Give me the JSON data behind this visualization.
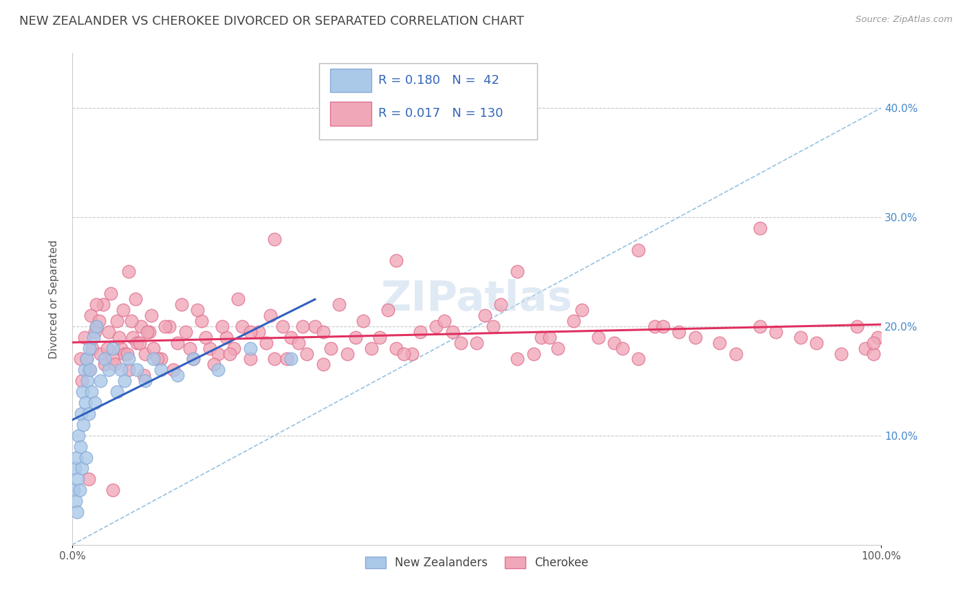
{
  "title": "NEW ZEALANDER VS CHEROKEE DIVORCED OR SEPARATED CORRELATION CHART",
  "source": "Source: ZipAtlas.com",
  "ylabel": "Divorced or Separated",
  "xlim": [
    0,
    100
  ],
  "ylim": [
    0,
    45
  ],
  "ytick_vals": [
    0,
    10,
    20,
    30,
    40
  ],
  "ytick_labels": [
    "",
    "10.0%",
    "20.0%",
    "30.0%",
    "40.0%"
  ],
  "grid_color": "#c8c8c8",
  "background_color": "#ffffff",
  "nz_color": "#aac8e8",
  "nz_edge_color": "#88aad8",
  "cherokee_color": "#f0a8b8",
  "cherokee_edge_color": "#e07090",
  "nz_R": 0.18,
  "nz_N": 42,
  "cherokee_R": 0.017,
  "cherokee_N": 130,
  "nz_line_color": "#3060c0",
  "cherokee_line_color": "#e03060",
  "diagonal_color": "#88bbdd",
  "diagonal_style": "--",
  "legend_label_nz": "New Zealanders",
  "legend_label_cherokee": "Cherokee",
  "watermark": "ZIPatlas",
  "ytick_color": "#4488cc",
  "xtick_color": "#555555",
  "nz_x": [
    0.2,
    0.3,
    0.4,
    0.5,
    0.6,
    0.7,
    0.8,
    0.9,
    1.0,
    1.1,
    1.2,
    1.3,
    1.4,
    1.5,
    1.6,
    1.7,
    1.8,
    1.9,
    2.0,
    2.1,
    2.2,
    2.4,
    2.6,
    2.8,
    3.0,
    3.5,
    4.0,
    4.5,
    5.0,
    5.5,
    6.0,
    6.5,
    7.0,
    8.0,
    9.0,
    10.0,
    11.0,
    13.0,
    15.0,
    18.0,
    22.0,
    27.0
  ],
  "nz_y": [
    5.0,
    7.0,
    4.0,
    8.0,
    3.0,
    6.0,
    10.0,
    5.0,
    9.0,
    12.0,
    7.0,
    14.0,
    11.0,
    16.0,
    13.0,
    8.0,
    17.0,
    15.0,
    12.0,
    18.0,
    16.0,
    14.0,
    19.0,
    13.0,
    20.0,
    15.0,
    17.0,
    16.0,
    18.0,
    14.0,
    16.0,
    15.0,
    17.0,
    16.0,
    15.0,
    17.0,
    16.0,
    15.5,
    17.0,
    16.0,
    18.0,
    17.0
  ],
  "cherokee_x": [
    1.0,
    1.5,
    2.0,
    2.5,
    3.0,
    3.5,
    4.0,
    4.5,
    5.0,
    5.5,
    6.0,
    6.5,
    7.0,
    7.5,
    8.0,
    8.5,
    9.0,
    9.5,
    10.0,
    11.0,
    12.0,
    13.0,
    14.0,
    15.0,
    16.0,
    17.0,
    18.0,
    19.0,
    20.0,
    21.0,
    22.0,
    23.0,
    24.0,
    25.0,
    26.0,
    27.0,
    28.0,
    29.0,
    30.0,
    31.0,
    32.0,
    34.0,
    36.0,
    38.0,
    40.0,
    42.0,
    45.0,
    47.0,
    50.0,
    52.0,
    55.0,
    58.0,
    60.0,
    62.0,
    65.0,
    67.0,
    70.0,
    72.0,
    75.0,
    77.0,
    80.0,
    82.0,
    85.0,
    87.0,
    90.0,
    92.0,
    95.0,
    97.0,
    98.0,
    99.0,
    99.5,
    1.2,
    1.8,
    2.3,
    2.8,
    3.3,
    3.8,
    4.3,
    4.8,
    5.3,
    5.8,
    6.3,
    6.8,
    7.3,
    7.8,
    8.3,
    8.8,
    9.3,
    9.8,
    10.5,
    11.5,
    12.5,
    13.5,
    14.5,
    15.5,
    16.5,
    17.5,
    18.5,
    19.5,
    20.5,
    22.0,
    24.5,
    26.5,
    28.5,
    31.0,
    33.0,
    35.0,
    37.0,
    39.0,
    41.0,
    43.0,
    46.0,
    48.0,
    51.0,
    53.0,
    57.0,
    59.0,
    63.0,
    68.0,
    73.0,
    3.0,
    7.0,
    25.0,
    40.0,
    55.0,
    70.0,
    85.0,
    99.0,
    2.0,
    5.0
  ],
  "cherokee_y": [
    17.0,
    19.0,
    16.0,
    18.0,
    20.0,
    17.5,
    16.5,
    19.5,
    17.0,
    20.5,
    18.0,
    17.5,
    16.0,
    19.0,
    18.5,
    20.0,
    17.5,
    19.5,
    18.0,
    17.0,
    20.0,
    18.5,
    19.5,
    17.0,
    20.5,
    18.0,
    17.5,
    19.0,
    18.0,
    20.0,
    17.0,
    19.5,
    18.5,
    17.0,
    20.0,
    19.0,
    18.5,
    17.5,
    20.0,
    19.5,
    18.0,
    17.5,
    20.5,
    19.0,
    18.0,
    17.5,
    20.0,
    19.5,
    18.5,
    20.0,
    17.0,
    19.0,
    18.0,
    20.5,
    19.0,
    18.5,
    17.0,
    20.0,
    19.5,
    19.0,
    18.5,
    17.5,
    20.0,
    19.5,
    19.0,
    18.5,
    17.5,
    20.0,
    18.0,
    17.5,
    19.0,
    15.0,
    17.0,
    21.0,
    19.5,
    20.5,
    22.0,
    18.0,
    23.0,
    16.5,
    19.0,
    21.5,
    17.5,
    20.5,
    22.5,
    18.5,
    15.5,
    19.5,
    21.0,
    17.0,
    20.0,
    16.0,
    22.0,
    18.0,
    21.5,
    19.0,
    16.5,
    20.0,
    17.5,
    22.5,
    19.5,
    21.0,
    17.0,
    20.0,
    16.5,
    22.0,
    19.0,
    18.0,
    21.5,
    17.5,
    19.5,
    20.5,
    18.5,
    21.0,
    22.0,
    17.5,
    19.0,
    21.5,
    18.0,
    20.0,
    22.0,
    25.0,
    28.0,
    26.0,
    25.0,
    27.0,
    29.0,
    18.5,
    6.0,
    5.0
  ]
}
